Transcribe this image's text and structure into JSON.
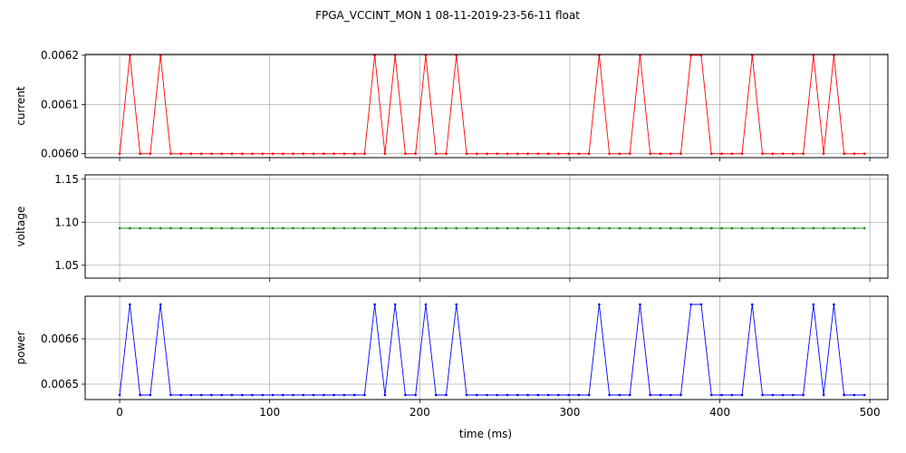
{
  "figure": {
    "title": "FPGA_VCCINT_MON   1   08-11-2019-23-56-11   float"
  },
  "chart_data": [
    {
      "type": "line",
      "panel": "top",
      "ylabel": "current",
      "xlabel": "",
      "color": "#ff0000",
      "xlim": [
        -23,
        512
      ],
      "ylim": [
        0.005992,
        0.006202
      ],
      "yticks": [
        0.006,
        0.0061,
        0.0062
      ],
      "ytick_labels": [
        "0.0060",
        "0.0061",
        "0.0062"
      ],
      "xticks": [
        0,
        100,
        200,
        300,
        400,
        500
      ],
      "xtick_labels": [],
      "grid": true,
      "x": [
        0,
        6.8,
        13.6,
        20.4,
        27.2,
        34,
        40.8,
        47.6,
        54.4,
        61.2,
        68,
        74.8,
        81.6,
        88.4,
        95.2,
        102,
        108.8,
        115.6,
        122.4,
        129.2,
        136,
        142.8,
        149.6,
        156.4,
        163.2,
        170,
        176.8,
        183.6,
        190.4,
        197.2,
        204,
        210.8,
        217.6,
        224.4,
        231.2,
        238,
        244.8,
        251.6,
        258.4,
        265.2,
        272,
        278.8,
        285.6,
        292.4,
        299.2,
        306,
        312.8,
        319.6,
        326.4,
        333.2,
        340,
        346.8,
        353.6,
        360.4,
        367.2,
        374,
        380.8,
        387.6,
        394.4,
        401.2,
        408,
        414.8,
        421.6,
        428.4,
        435.2,
        442,
        448.8,
        455.6,
        462.4,
        469.2,
        476,
        482.8,
        489.6,
        496.4
      ],
      "y": [
        0.006,
        0.0062,
        0.006,
        0.006,
        0.0062,
        0.006,
        0.006,
        0.006,
        0.006,
        0.006,
        0.006,
        0.006,
        0.006,
        0.006,
        0.006,
        0.006,
        0.006,
        0.006,
        0.006,
        0.006,
        0.006,
        0.006,
        0.006,
        0.006,
        0.006,
        0.0062,
        0.006,
        0.0062,
        0.006,
        0.006,
        0.0062,
        0.006,
        0.006,
        0.0062,
        0.006,
        0.006,
        0.006,
        0.006,
        0.006,
        0.006,
        0.006,
        0.006,
        0.006,
        0.006,
        0.006,
        0.006,
        0.006,
        0.0062,
        0.006,
        0.006,
        0.006,
        0.0062,
        0.006,
        0.006,
        0.006,
        0.006,
        0.0062,
        0.0062,
        0.006,
        0.006,
        0.006,
        0.006,
        0.0062,
        0.006,
        0.006,
        0.006,
        0.006,
        0.006,
        0.0062,
        0.006,
        0.0062,
        0.006,
        0.006,
        0.006
      ]
    },
    {
      "type": "line",
      "panel": "middle",
      "ylabel": "voltage",
      "xlabel": "",
      "color": "#008000",
      "xlim": [
        -23,
        512
      ],
      "ylim": [
        1.035,
        1.155
      ],
      "yticks": [
        1.05,
        1.1,
        1.15
      ],
      "ytick_labels": [
        "1.05",
        "1.10",
        "1.15"
      ],
      "xticks": [
        0,
        100,
        200,
        300,
        400,
        500
      ],
      "xtick_labels": [],
      "grid": true,
      "x": [
        0,
        6.8,
        13.6,
        20.4,
        27.2,
        34,
        40.8,
        47.6,
        54.4,
        61.2,
        68,
        74.8,
        81.6,
        88.4,
        95.2,
        102,
        108.8,
        115.6,
        122.4,
        129.2,
        136,
        142.8,
        149.6,
        156.4,
        163.2,
        170,
        176.8,
        183.6,
        190.4,
        197.2,
        204,
        210.8,
        217.6,
        224.4,
        231.2,
        238,
        244.8,
        251.6,
        258.4,
        265.2,
        272,
        278.8,
        285.6,
        292.4,
        299.2,
        306,
        312.8,
        319.6,
        326.4,
        333.2,
        340,
        346.8,
        353.6,
        360.4,
        367.2,
        374,
        380.8,
        387.6,
        394.4,
        401.2,
        408,
        414.8,
        421.6,
        428.4,
        435.2,
        442,
        448.8,
        455.6,
        462.4,
        469.2,
        476,
        482.8,
        489.6,
        496.4
      ],
      "y": [
        1.093,
        1.093,
        1.093,
        1.093,
        1.093,
        1.093,
        1.093,
        1.093,
        1.093,
        1.093,
        1.093,
        1.093,
        1.093,
        1.093,
        1.093,
        1.093,
        1.093,
        1.093,
        1.093,
        1.093,
        1.093,
        1.093,
        1.093,
        1.093,
        1.093,
        1.093,
        1.093,
        1.093,
        1.093,
        1.093,
        1.093,
        1.093,
        1.093,
        1.093,
        1.093,
        1.093,
        1.093,
        1.093,
        1.093,
        1.093,
        1.093,
        1.093,
        1.093,
        1.093,
        1.093,
        1.093,
        1.093,
        1.093,
        1.093,
        1.093,
        1.093,
        1.093,
        1.093,
        1.093,
        1.093,
        1.093,
        1.093,
        1.093,
        1.093,
        1.093,
        1.093,
        1.093,
        1.093,
        1.093,
        1.093,
        1.093,
        1.093,
        1.093,
        1.093,
        1.093,
        1.093,
        1.093,
        1.093,
        1.093
      ]
    },
    {
      "type": "line",
      "panel": "bottom",
      "ylabel": "power",
      "xlabel": "time (ms)",
      "color": "#0000ff",
      "xlim": [
        -23,
        512
      ],
      "ylim": [
        0.006466,
        0.006694
      ],
      "yticks": [
        0.0065,
        0.0066
      ],
      "ytick_labels": [
        "0.0065",
        "0.0066"
      ],
      "xticks": [
        0,
        100,
        200,
        300,
        400,
        500
      ],
      "xtick_labels": [
        "0",
        "100",
        "200",
        "300",
        "400",
        "500"
      ],
      "grid": true,
      "x": [
        0,
        6.8,
        13.6,
        20.4,
        27.2,
        34,
        40.8,
        47.6,
        54.4,
        61.2,
        68,
        74.8,
        81.6,
        88.4,
        95.2,
        102,
        108.8,
        115.6,
        122.4,
        129.2,
        136,
        142.8,
        149.6,
        156.4,
        163.2,
        170,
        176.8,
        183.6,
        190.4,
        197.2,
        204,
        210.8,
        217.6,
        224.4,
        231.2,
        238,
        244.8,
        251.6,
        258.4,
        265.2,
        272,
        278.8,
        285.6,
        292.4,
        299.2,
        306,
        312.8,
        319.6,
        326.4,
        333.2,
        340,
        346.8,
        353.6,
        360.4,
        367.2,
        374,
        380.8,
        387.6,
        394.4,
        401.2,
        408,
        414.8,
        421.6,
        428.4,
        435.2,
        442,
        448.8,
        455.6,
        462.4,
        469.2,
        476,
        482.8,
        489.6,
        496.4
      ],
      "y": [
        0.006476,
        0.006676,
        0.006476,
        0.006476,
        0.006676,
        0.006476,
        0.006476,
        0.006476,
        0.006476,
        0.006476,
        0.006476,
        0.006476,
        0.006476,
        0.006476,
        0.006476,
        0.006476,
        0.006476,
        0.006476,
        0.006476,
        0.006476,
        0.006476,
        0.006476,
        0.006476,
        0.006476,
        0.006476,
        0.006676,
        0.006476,
        0.006676,
        0.006476,
        0.006476,
        0.006676,
        0.006476,
        0.006476,
        0.006676,
        0.006476,
        0.006476,
        0.006476,
        0.006476,
        0.006476,
        0.006476,
        0.006476,
        0.006476,
        0.006476,
        0.006476,
        0.006476,
        0.006476,
        0.006476,
        0.006676,
        0.006476,
        0.006476,
        0.006476,
        0.006676,
        0.006476,
        0.006476,
        0.006476,
        0.006476,
        0.006676,
        0.006676,
        0.006476,
        0.006476,
        0.006476,
        0.006476,
        0.006676,
        0.006476,
        0.006476,
        0.006476,
        0.006476,
        0.006476,
        0.006676,
        0.006476,
        0.006676,
        0.006476,
        0.006476,
        0.006476
      ]
    }
  ]
}
